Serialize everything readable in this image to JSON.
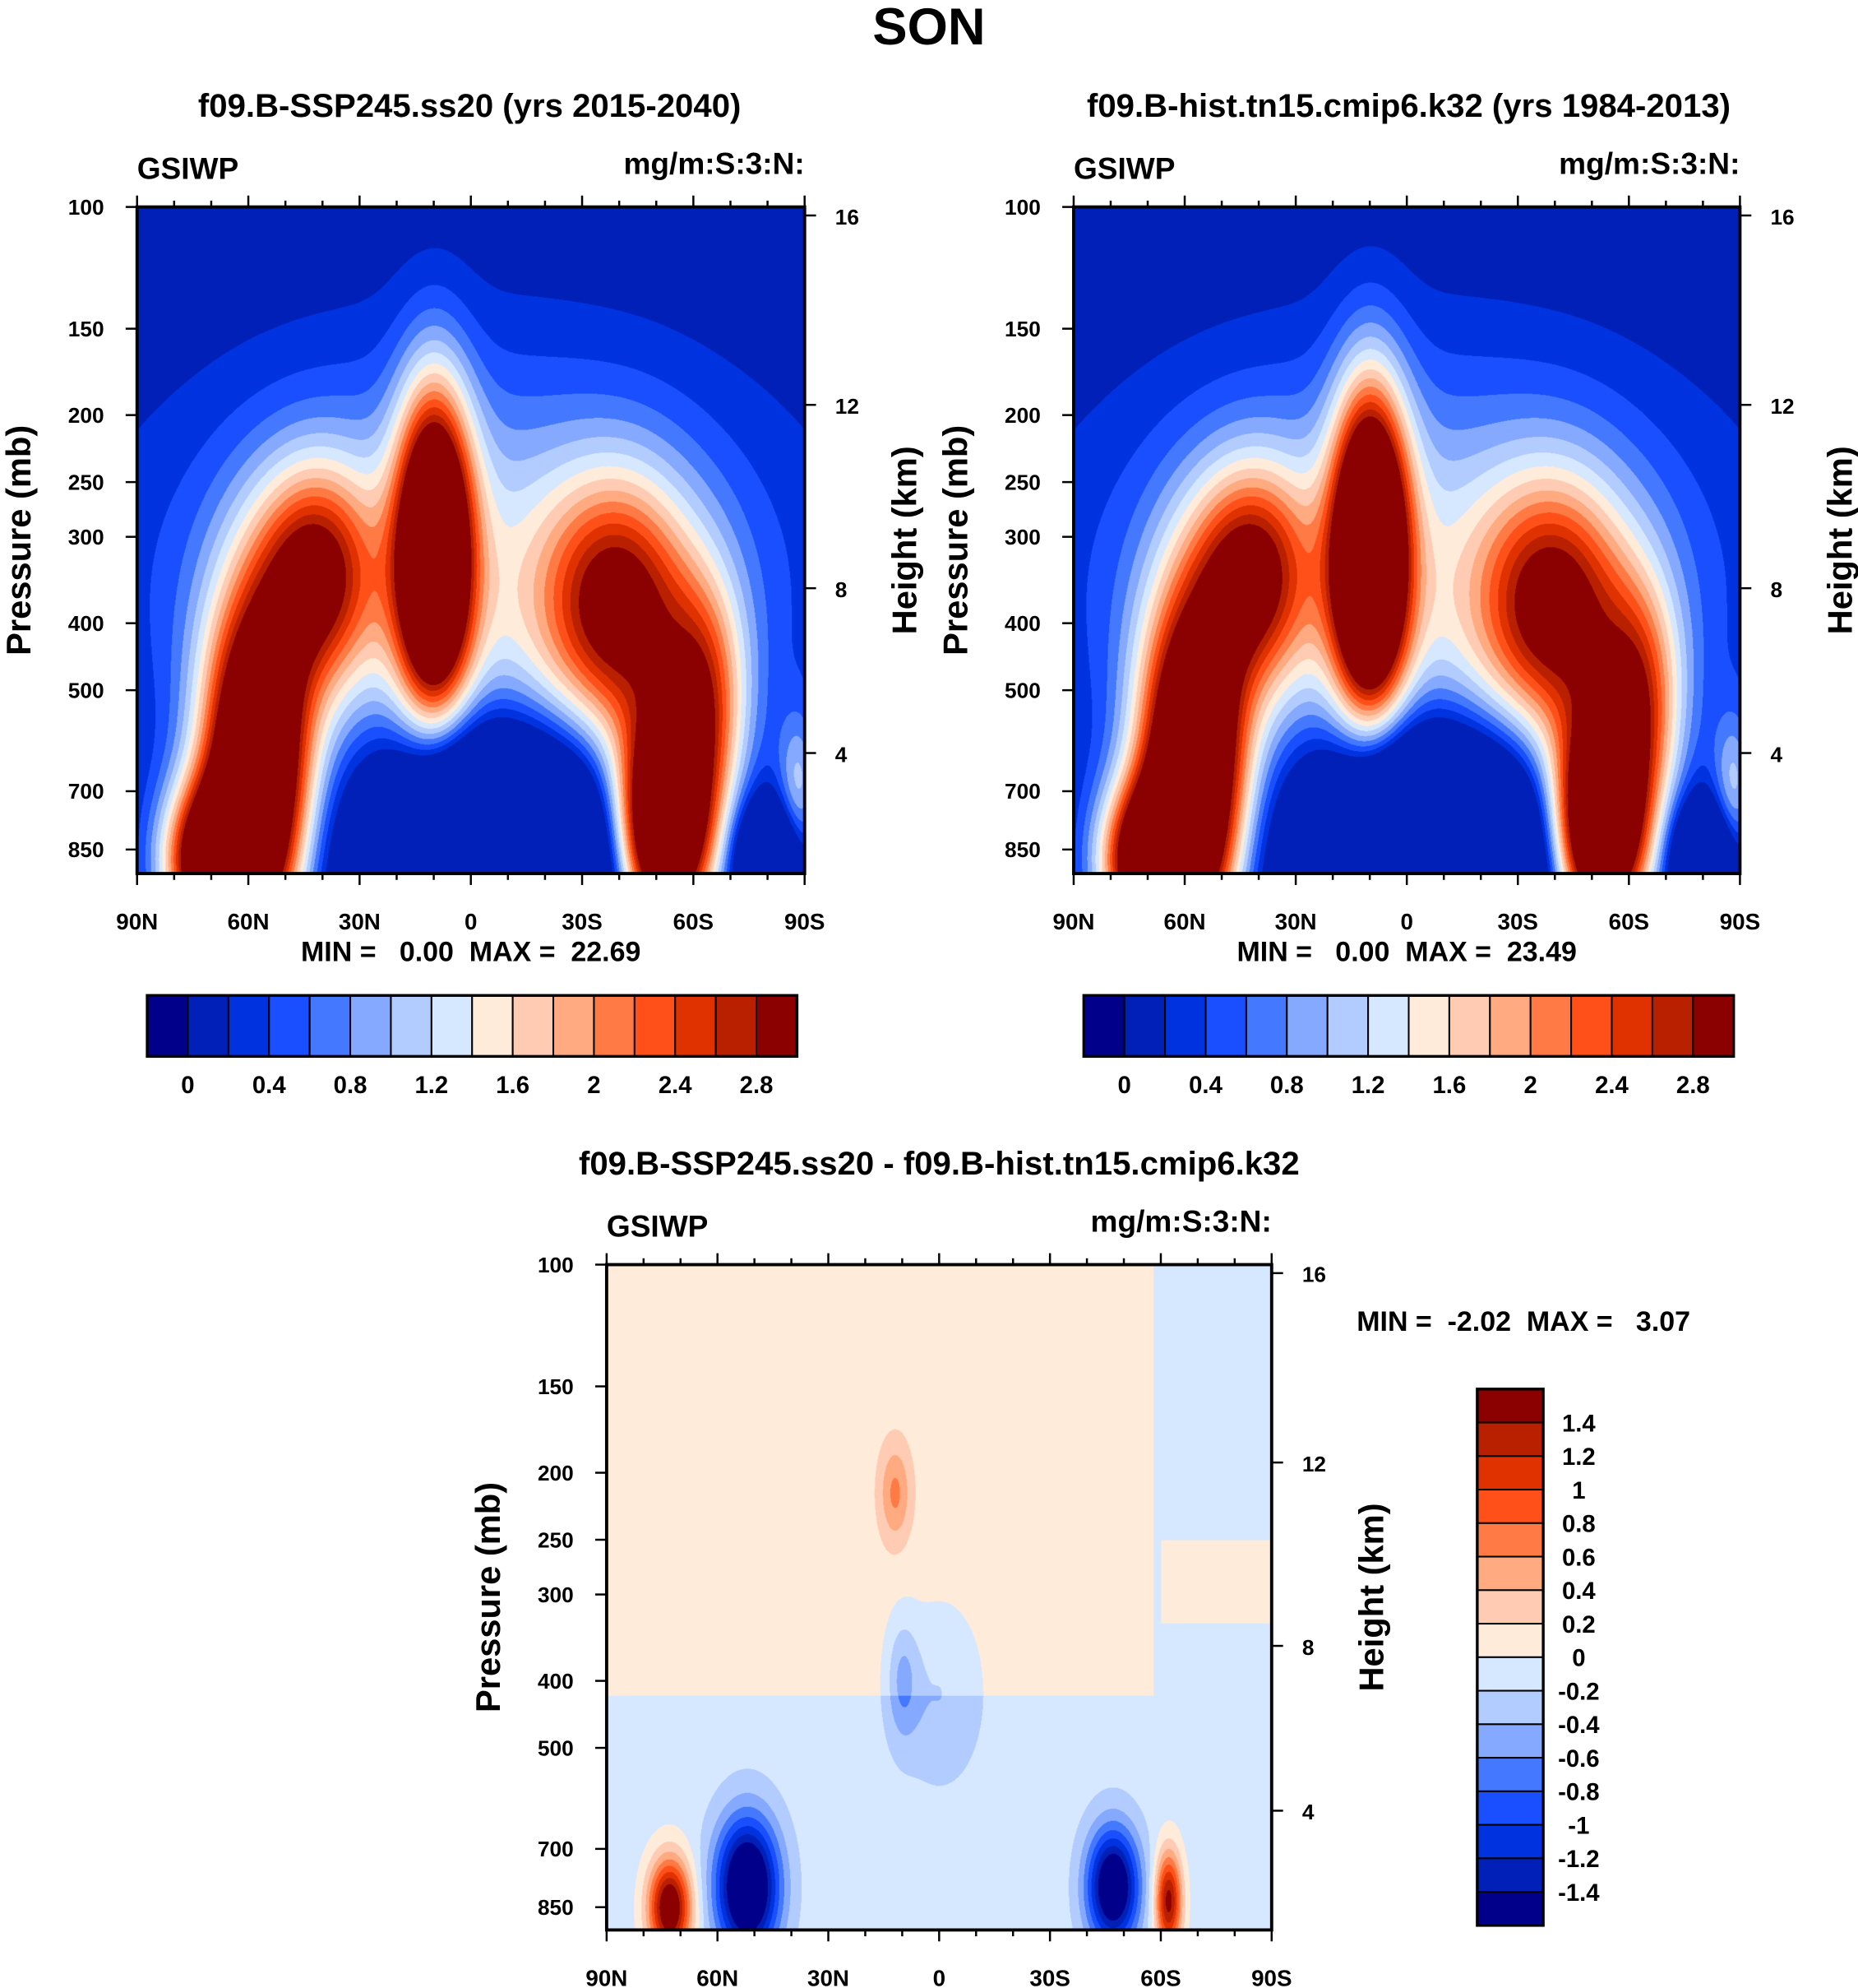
{
  "main_title": "SON",
  "colors": [
    "#00008B",
    "#0020B8",
    "#0033E0",
    "#1A4FFF",
    "#4479FF",
    "#84A9FF",
    "#B3CCFF",
    "#D6E8FF",
    "#FFEBD9",
    "#FFCCB3",
    "#FFAA80",
    "#FF7A45",
    "#FF5019",
    "#E03200",
    "#B82000",
    "#8B0000"
  ],
  "chart_data": [
    {
      "type": "heatmap",
      "title": "f09.B-SSP245.ss20 (yrs 2015-2040)",
      "variable": "GSIWP",
      "units": "mg/m:S:3:N:",
      "xlabel": "",
      "ylabel": "Pressure (mb)",
      "y2label": "Height (km)",
      "x_ticks": [
        "90N",
        "60N",
        "30N",
        "0",
        "30S",
        "60S",
        "90S"
      ],
      "y_ticks": [
        "100",
        "150",
        "200",
        "250",
        "300",
        "400",
        "500",
        "700",
        "850"
      ],
      "y2_ticks": [
        "16",
        "12",
        "8",
        "4"
      ],
      "min_max_text": "MIN =   0.00  MAX =  22.69",
      "min": 0.0,
      "max": 22.69,
      "levels": [
        0,
        0.2,
        0.4,
        0.6,
        0.8,
        1,
        1.2,
        1.4,
        1.6,
        1.8,
        2,
        2.2,
        2.4,
        2.6,
        2.8
      ],
      "colorbar_labels": [
        "0",
        "0.4",
        "0.8",
        "1.2",
        "1.6",
        "2",
        "2.4",
        "2.8"
      ]
    },
    {
      "type": "heatmap",
      "title": "f09.B-hist.tn15.cmip6.k32 (yrs 1984-2013)",
      "variable": "GSIWP",
      "units": "mg/m:S:3:N:",
      "xlabel": "",
      "ylabel": "Pressure (mb)",
      "y2label": "Height (km)",
      "x_ticks": [
        "90N",
        "60N",
        "30N",
        "0",
        "30S",
        "60S",
        "90S"
      ],
      "y_ticks": [
        "100",
        "150",
        "200",
        "250",
        "300",
        "400",
        "500",
        "700",
        "850"
      ],
      "y2_ticks": [
        "16",
        "12",
        "8",
        "4"
      ],
      "min_max_text": "MIN =   0.00  MAX =  23.49",
      "min": 0.0,
      "max": 23.49,
      "levels": [
        0,
        0.2,
        0.4,
        0.6,
        0.8,
        1,
        1.2,
        1.4,
        1.6,
        1.8,
        2,
        2.2,
        2.4,
        2.6,
        2.8
      ],
      "colorbar_labels": [
        "0",
        "0.4",
        "0.8",
        "1.2",
        "1.6",
        "2",
        "2.4",
        "2.8"
      ]
    },
    {
      "type": "heatmap",
      "title": "f09.B-SSP245.ss20 - f09.B-hist.tn15.cmip6.k32",
      "variable": "GSIWP",
      "units": "mg/m:S:3:N:",
      "xlabel": "",
      "ylabel": "Pressure (mb)",
      "y2label": "Height (km)",
      "x_ticks": [
        "90N",
        "60N",
        "30N",
        "0",
        "30S",
        "60S",
        "90S"
      ],
      "y_ticks": [
        "100",
        "150",
        "200",
        "250",
        "300",
        "400",
        "500",
        "700",
        "850"
      ],
      "y2_ticks": [
        "16",
        "12",
        "8",
        "4"
      ],
      "min_max_text": "MIN =  -2.02  MAX =   3.07",
      "min": -2.02,
      "max": 3.07,
      "levels": [
        -1.4,
        -1.2,
        -1,
        -0.8,
        -0.6,
        -0.4,
        -0.2,
        0,
        0.2,
        0.4,
        0.6,
        0.8,
        1,
        1.2,
        1.4
      ],
      "colorbar_labels": [
        "1.4",
        "1.2",
        "1",
        "0.8",
        "0.6",
        "0.4",
        "0.2",
        "0",
        "-0.2",
        "-0.4",
        "-0.6",
        "-0.8",
        "-1",
        "-1.2",
        "-1.4"
      ]
    }
  ]
}
